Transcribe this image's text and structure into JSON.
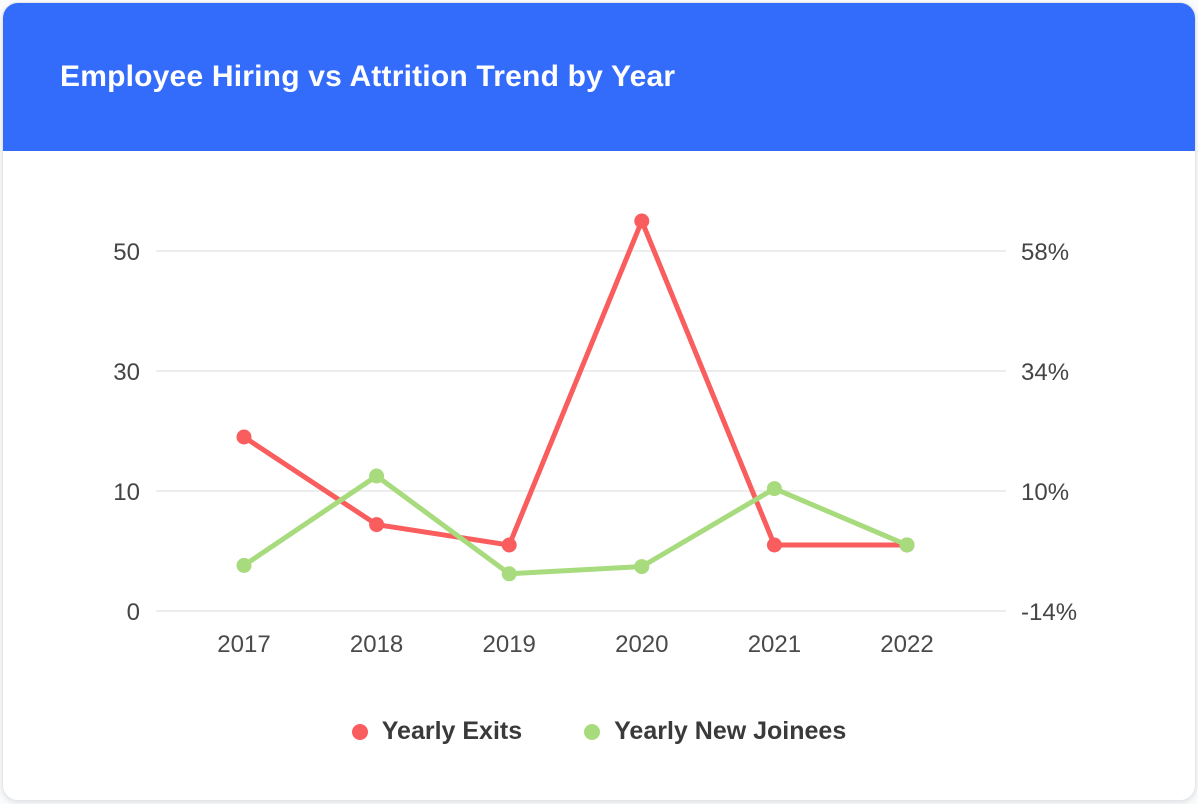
{
  "header": {
    "title": "Employee Hiring vs Attrition Trend by Year",
    "background_color": "#336BFB",
    "text_color": "#FFFFFF"
  },
  "chart_data": {
    "type": "line",
    "title": "Employee Hiring vs Attrition Trend by Year",
    "categories": [
      "2017",
      "2018",
      "2019",
      "2020",
      "2021",
      "2022"
    ],
    "series": [
      {
        "name": "Yearly Exits",
        "color": "#F95D5D",
        "values": [
          19,
          7.2,
          5.5,
          55,
          5.5,
          5.5
        ]
      },
      {
        "name": "Yearly New Joinees",
        "color": "#A7DB7D",
        "values": [
          3.8,
          12.5,
          3.1,
          3.7,
          10.4,
          5.5
        ]
      }
    ],
    "left_axis": {
      "ticks": [
        0,
        10,
        30,
        50
      ]
    },
    "right_axis": {
      "tick_labels": [
        "-14%",
        "10%",
        "34%",
        "58%"
      ]
    },
    "grid": true,
    "gridline_color": "#ededed",
    "axis_text_color": "#454545",
    "legend_position": "bottom",
    "marker": "circle",
    "line_width": 5
  }
}
